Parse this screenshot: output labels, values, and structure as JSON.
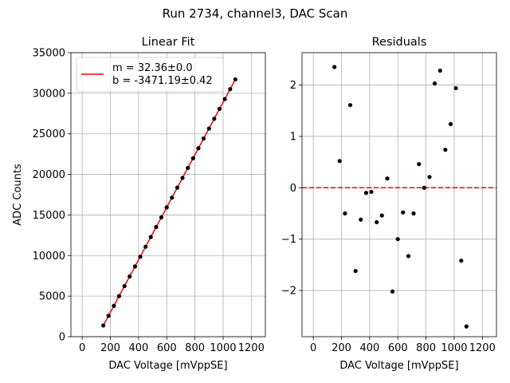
{
  "figure": {
    "suptitle": "Run 2734, channel3, DAC Scan"
  },
  "colors": {
    "fit_line": "#ff0000",
    "points": "#000000",
    "grid": "#b0b0b0",
    "zero_line": "#ff0000"
  },
  "chart_data": [
    {
      "type": "scatter",
      "title": "Linear Fit",
      "xlabel": "DAC Voltage [mVppSE]",
      "ylabel": "ADC Counts",
      "xlim": [
        -80,
        1300
      ],
      "ylim": [
        0,
        35000
      ],
      "xticks": [
        0,
        200,
        400,
        600,
        800,
        1000,
        1200
      ],
      "xtick_labels": [
        "0",
        "200",
        "400",
        "600",
        "800",
        "1000",
        "1200"
      ],
      "yticks": [
        0,
        5000,
        10000,
        15000,
        20000,
        25000,
        30000,
        35000
      ],
      "ytick_labels": [
        "0",
        "5000",
        "10000",
        "15000",
        "20000",
        "25000",
        "30000",
        "35000"
      ],
      "grid": true,
      "legend_position": "upper-left",
      "legend": [
        "m = 32.36±0.0",
        "b = -3471.19±0.42"
      ],
      "fit": {
        "slope": 32.36,
        "intercept": -3471.19,
        "x_range": [
          150,
          1087
        ]
      },
      "points": {
        "x": [
          150,
          187,
          225,
          262,
          300,
          337,
          375,
          412,
          450,
          487,
          525,
          562,
          600,
          637,
          675,
          712,
          750,
          787,
          825,
          862,
          900,
          937,
          975,
          1012,
          1050,
          1087
        ],
        "y": [
          1383,
          2582,
          3810,
          5007,
          6234,
          7427,
          8664,
          9862,
          11089,
          12286,
          13516,
          14711,
          15942,
          17139,
          18370,
          19570,
          20799,
          21996,
          23225,
          24423,
          25654,
          26851,
          28080,
          29278,
          30503,
          31702
        ]
      }
    },
    {
      "type": "scatter",
      "title": "Residuals",
      "xlabel": "DAC Voltage [mVppSE]",
      "ylabel": "",
      "xlim": [
        -80,
        1300
      ],
      "ylim": [
        -2.9,
        2.63
      ],
      "xticks": [
        0,
        200,
        400,
        600,
        800,
        1000,
        1200
      ],
      "xtick_labels": [
        "0",
        "200",
        "400",
        "600",
        "800",
        "1000",
        "1200"
      ],
      "yticks": [
        -2,
        -1,
        0,
        1,
        2
      ],
      "ytick_labels": [
        "−2",
        "−1",
        "0",
        "1",
        "2"
      ],
      "grid": true,
      "reference_line_y": 0,
      "points": {
        "x": [
          150,
          187,
          225,
          262,
          300,
          337,
          375,
          412,
          450,
          487,
          525,
          562,
          600,
          637,
          675,
          712,
          750,
          787,
          825,
          862,
          900,
          937,
          975,
          1012,
          1050,
          1087
        ],
        "y": [
          2.35,
          0.52,
          -0.5,
          1.61,
          -1.62,
          -0.62,
          -0.1,
          -0.08,
          -0.67,
          -0.54,
          0.18,
          -2.02,
          -1.0,
          -0.48,
          -1.33,
          -0.5,
          0.46,
          0.0,
          0.21,
          2.03,
          2.28,
          0.74,
          1.24,
          1.94,
          -1.42,
          -2.7
        ]
      }
    }
  ]
}
